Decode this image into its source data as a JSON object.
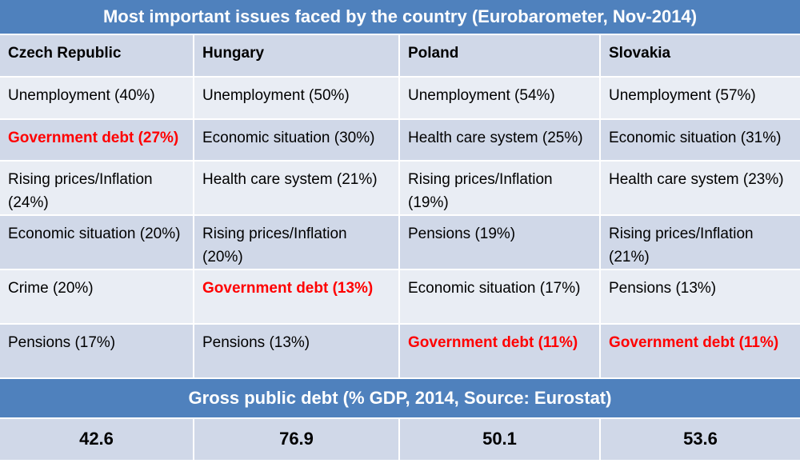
{
  "title": "Most important issues faced by the country (Eurobarometer, Nov-2014)",
  "debt_title": "Gross public debt (% GDP, 2014, Source: Eurostat)",
  "colors": {
    "header_bar": "#4f81bd",
    "row_dark": "#d0d8e8",
    "row_light": "#e9edf4",
    "highlight": "#ff0000"
  },
  "chart_data": {
    "type": "table",
    "title": "Most important issues faced by the country (Eurobarometer, Nov-2014)",
    "columns": [
      "Czech Republic",
      "Hungary",
      "Poland",
      "Slovakia"
    ],
    "highlight_issue": "Government debt",
    "rows": [
      [
        {
          "text": "Unemployment (40%)"
        },
        {
          "text": "Unemployment (50%)"
        },
        {
          "text": "Unemployment (54%)"
        },
        {
          "text": "Unemployment (57%)"
        }
      ],
      [
        {
          "text": "Government debt (27%)",
          "highlight": true
        },
        {
          "text": "Economic situation (30%)"
        },
        {
          "text": "Health care system (25%)"
        },
        {
          "text": "Economic situation (31%)"
        }
      ],
      [
        {
          "text": "Rising prices/Inflation (24%)"
        },
        {
          "text": "Health care system (21%)"
        },
        {
          "text": "Rising prices/Inflation (19%)"
        },
        {
          "text": "Health care system (23%)"
        }
      ],
      [
        {
          "text": "Economic situation (20%)"
        },
        {
          "text": "Rising prices/Inflation (20%)"
        },
        {
          "text": "Pensions (19%)"
        },
        {
          "text": "Rising prices/Inflation (21%)"
        }
      ],
      [
        {
          "text": "Crime (20%)"
        },
        {
          "text": "Government debt (13%)",
          "highlight": true
        },
        {
          "text": "Economic situation (17%)"
        },
        {
          "text": "Pensions (13%)"
        }
      ],
      [
        {
          "text": "Pensions (17%)"
        },
        {
          "text": "Pensions (13%)"
        },
        {
          "text": "Government debt (11%)",
          "highlight": true
        },
        {
          "text": "Government debt (11%)",
          "highlight": true
        }
      ]
    ],
    "debt_title": "Gross public debt (% GDP, 2014, Source: Eurostat)",
    "debt_values": [
      "42.6",
      "76.9",
      "50.1",
      "53.6"
    ]
  }
}
